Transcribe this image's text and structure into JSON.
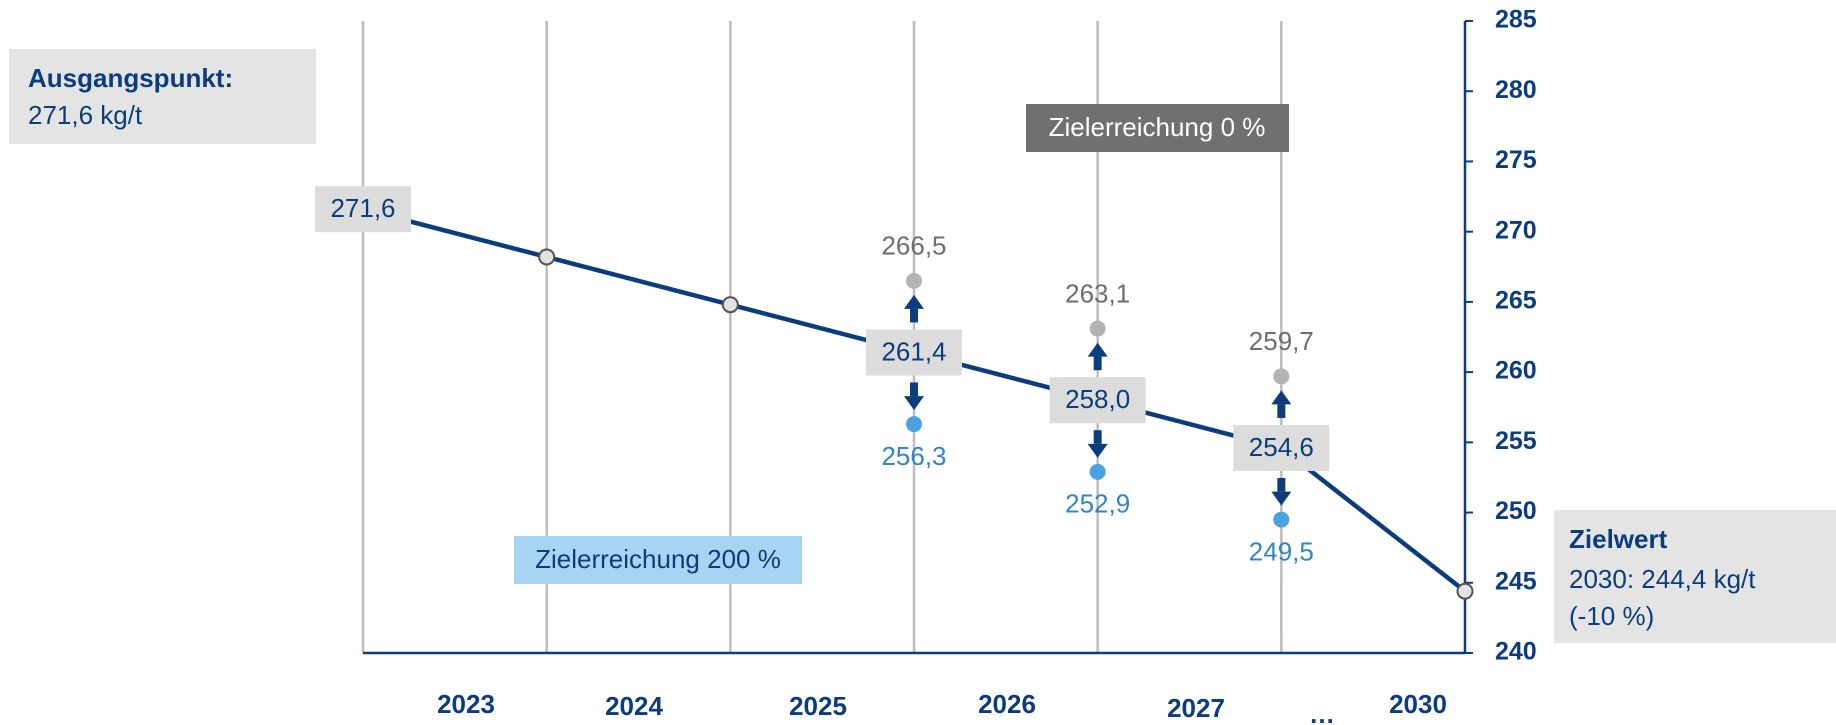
{
  "chart_data": {
    "type": "line",
    "categories": [
      "2023",
      "2024",
      "2025",
      "2026",
      "2027",
      "…",
      "2030"
    ],
    "series": [
      {
        "color": "#0b3d7e",
        "values": [
          271.6,
          268.2,
          264.8,
          261.4,
          258.0,
          254.6,
          244.4
        ],
        "value_labels": [
          "271,6",
          null,
          null,
          "261,4",
          "258,0",
          "254,6",
          null
        ]
      },
      {
        "color": "#b3b3b3",
        "values": [
          null,
          null,
          null,
          266.5,
          263.1,
          259.7,
          null
        ],
        "value_labels": [
          null,
          null,
          null,
          "266,5",
          "263,1",
          "259,7",
          null
        ]
      },
      {
        "color": "#4aa3df",
        "values": [
          null,
          null,
          null,
          256.3,
          252.9,
          249.5,
          null
        ],
        "value_labels": [
          null,
          null,
          null,
          "256,3",
          "252,9",
          "249,5",
          null
        ]
      }
    ],
    "ylim": [
      240,
      285
    ],
    "yticks": [
      240,
      245,
      250,
      255,
      260,
      265,
      270,
      275,
      280,
      285
    ],
    "grid": true,
    "annotations": {
      "start_title": "Ausgangspunkt:",
      "start_value": "271,6 kg/t",
      "goal_zero": "Zielerreichung 0 %",
      "goal_double": "Zielerreichung 200 %",
      "target_title": "Zielwert",
      "target_value": "2030: 244,4 kg/t",
      "target_change": "(-10 %)"
    }
  }
}
